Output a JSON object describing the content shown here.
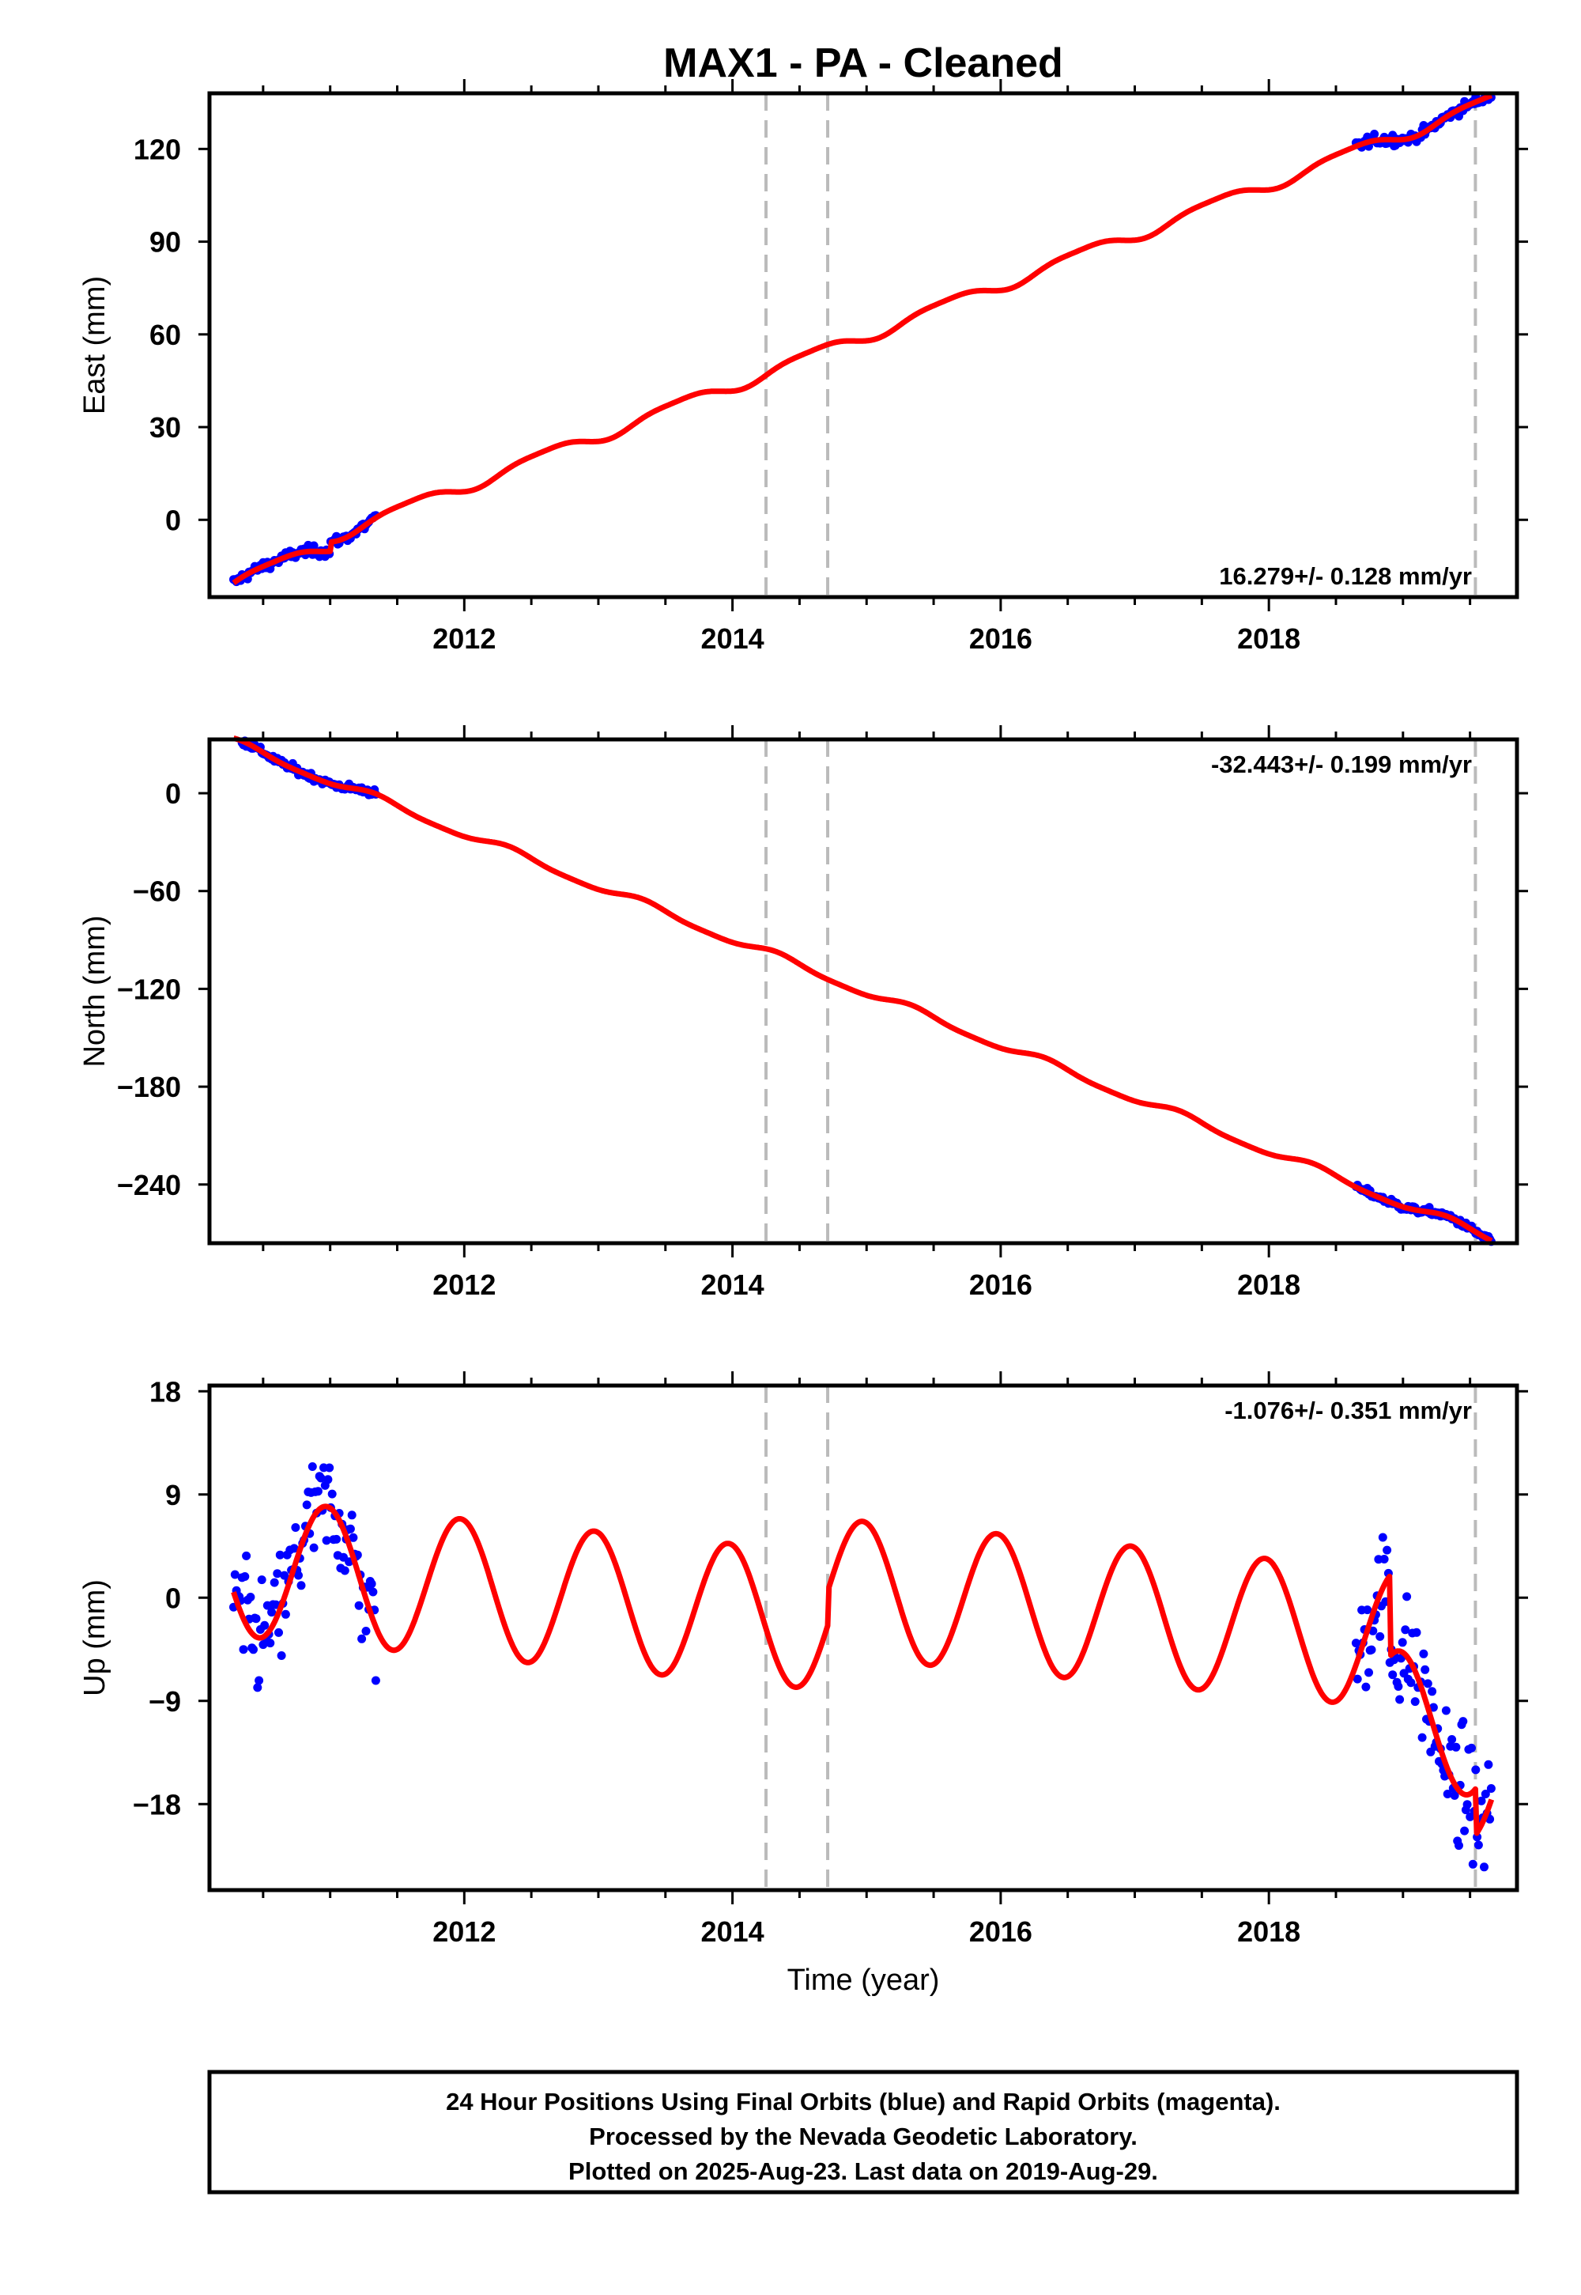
{
  "chart_data": {
    "title": "MAX1  - PA - Cleaned",
    "type": "scatter",
    "xlabel": "Time (year)",
    "xlim": [
      2010.1,
      2019.85
    ],
    "x_ticks": [
      2012,
      2014,
      2016,
      2018
    ],
    "equipment_change_lines": [
      2014.25,
      2014.71,
      2019.54
    ],
    "colors": {
      "data": "#0000ff",
      "model": "#ff0000",
      "dashed_line": "#bbbbbb"
    },
    "data_segments": [
      [
        2010.28,
        2011.35
      ],
      [
        2018.65,
        2019.66
      ]
    ],
    "panels": [
      {
        "name": "East",
        "ylabel": "East (mm)",
        "ylim": [
          -25,
          138
        ],
        "y_ticks": [
          0,
          30,
          60,
          90,
          120
        ],
        "rate_text": "16.279+/- 0.128 mm/yr",
        "rate_position": "bottom-right",
        "model": {
          "rate": 16.279,
          "t0": 2010.28,
          "y0": -20,
          "steps": [
            {
              "t": 2011.0,
              "dy": 3
            }
          ],
          "annual_amp": 2.0,
          "annual_phase": 0.35,
          "semiannual_amp": 0.5
        },
        "scatter_noise": 1.2,
        "series": [
          {
            "name": "24 Hour Positions (final orbits)",
            "style": "points",
            "color": "#0000ff"
          },
          {
            "name": "model",
            "style": "line",
            "color": "#ff0000"
          }
        ]
      },
      {
        "name": "North",
        "ylabel": "North (mm)",
        "ylim": [
          -276,
          33
        ],
        "y_ticks": [
          0,
          -60,
          -120,
          -180,
          -240
        ],
        "rate_text": "-32.443+/- 0.199 mm/yr",
        "rate_position": "top-right",
        "model": {
          "rate": -32.443,
          "t0": 2010.28,
          "y0": 31,
          "steps": [],
          "annual_amp": 2.5,
          "annual_phase": 0.1,
          "semiannual_amp": 0.6
        },
        "scatter_noise": 1.6,
        "series": [
          {
            "name": "24 Hour Positions (final orbits)",
            "style": "points",
            "color": "#0000ff"
          },
          {
            "name": "model",
            "style": "line",
            "color": "#ff0000"
          }
        ]
      },
      {
        "name": "Up",
        "ylabel": "Up (mm)",
        "ylim": [
          -25.5,
          18.5
        ],
        "y_ticks": [
          18,
          9,
          0,
          -9,
          -18
        ],
        "rate_text": "-1.076+/- 0.351 mm/yr",
        "rate_position": "top-right",
        "model": {
          "rate": -1.076,
          "t0": 2010.28,
          "y0": 2.7,
          "steps": [
            {
              "t": 2014.71,
              "dy": 3.0
            },
            {
              "t": 2018.9,
              "dy": -7.0
            },
            {
              "t": 2019.54,
              "dy": -4.0
            }
          ],
          "annual_amp": 6.0,
          "annual_phase": 0.72,
          "semiannual_amp": 0.0
        },
        "scatter_noise": 3.5,
        "series": [
          {
            "name": "24 Hour Positions (final orbits)",
            "style": "points",
            "color": "#0000ff"
          },
          {
            "name": "model",
            "style": "line",
            "color": "#ff0000"
          }
        ]
      }
    ]
  },
  "footer": {
    "line1": "24 Hour Positions Using Final Orbits (blue) and Rapid Orbits (magenta).",
    "line2": "Processed by the Nevada Geodetic Laboratory.",
    "line3": "Plotted on 2025-Aug-23. Last data on 2019-Aug-29."
  }
}
